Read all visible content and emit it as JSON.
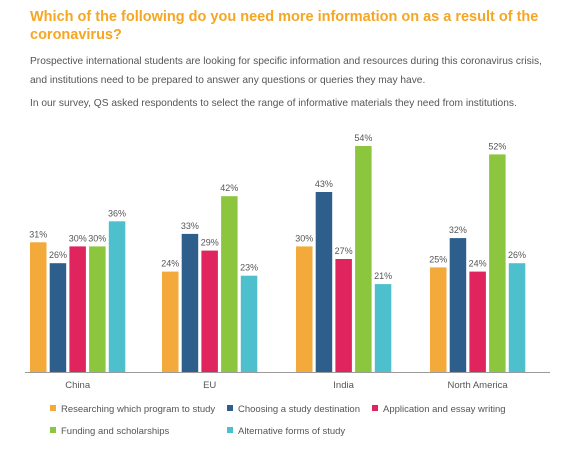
{
  "title": "Which of the following do you need more information on as a result of the coronavirus?",
  "paragraph1": "Prospective international students are looking for specific information and resources during this coronavirus crisis, and institutions need to be prepared to answer any questions or queries they may have.",
  "paragraph2": "In our survey, QS asked respondents to select the range of informative materials they need from institutions.",
  "chart_data": {
    "type": "bar",
    "categories": [
      "China",
      "EU",
      "India",
      "North America"
    ],
    "series": [
      {
        "name": "Researching which program to study",
        "color": "#f4a93b",
        "values": [
          31,
          24,
          30,
          25
        ]
      },
      {
        "name": "Choosing a study destination",
        "color": "#2e5e8c",
        "values": [
          26,
          33,
          43,
          32
        ]
      },
      {
        "name": "Application and essay writing",
        "color": "#e0245e",
        "values": [
          30,
          29,
          27,
          24
        ]
      },
      {
        "name": "Funding and scholarships",
        "color": "#8cc63f",
        "values": [
          30,
          42,
          54,
          52
        ]
      },
      {
        "name": "Alternative forms of study",
        "color": "#4dbfcd",
        "values": [
          36,
          23,
          21,
          26
        ]
      }
    ],
    "value_suffix": "%",
    "ylim": [
      0,
      54
    ],
    "grid": false,
    "legend_position": "bottom"
  }
}
